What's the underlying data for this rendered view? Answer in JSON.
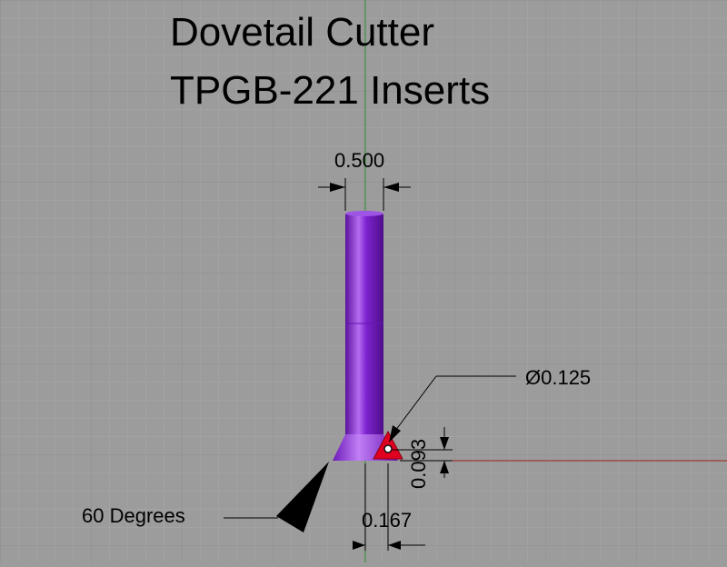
{
  "title": {
    "line1": "Dovetail Cutter",
    "line2": "TPGB-221 Inserts"
  },
  "dimensions": {
    "shank_width": "0.500",
    "hole_diameter": "Ø0.125",
    "insert_height": "0.093",
    "insert_offset": "0.167",
    "angle": "60 Degrees"
  },
  "colors": {
    "background": "#9c9c9c",
    "grid_minor": "#a9a9a9",
    "grid_major": "#8c8c8c",
    "axis_y": "#2f8f2f",
    "axis_x": "#a02020",
    "tool_body": "#7a1fc9",
    "insert": "#e00020"
  }
}
